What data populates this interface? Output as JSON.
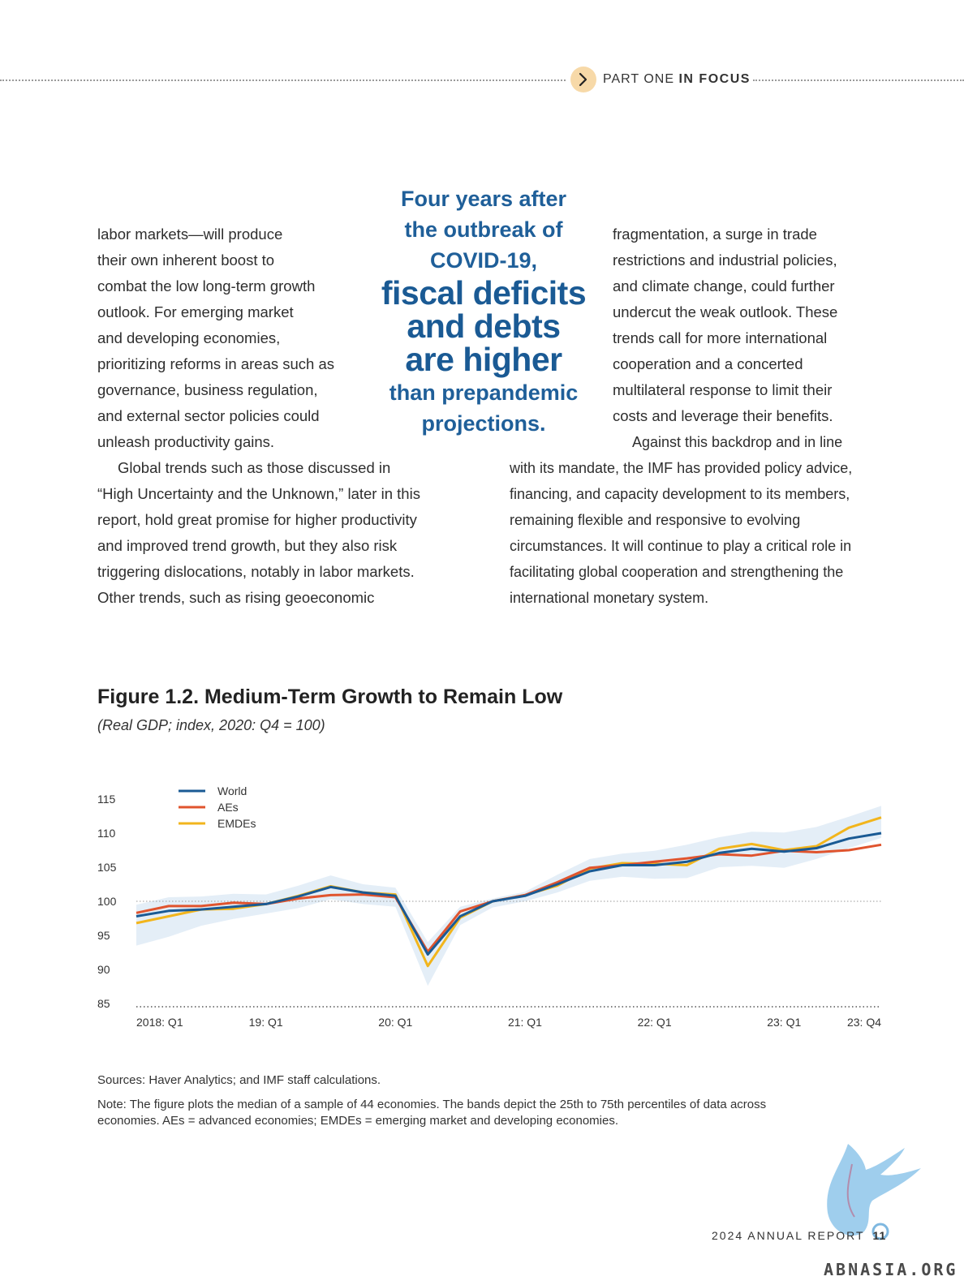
{
  "header": {
    "part": "PART ONE",
    "section": "IN FOCUS"
  },
  "left_column": [
    "labor markets—will produce",
    "their own inherent boost to",
    "combat the low long-term growth",
    "outlook. For emerging market",
    "and developing economies,",
    "prioritizing reforms in areas such as",
    "governance, business regulation,",
    "and external sector policies could",
    "unleash productivity gains."
  ],
  "left_paragraph2": [
    "Global trends such as those discussed in",
    "“High Uncertainty and the Unknown,” later in this",
    "report, hold great promise for higher productivity",
    "and improved trend growth, but they also risk",
    "triggering dislocations, notably in labor markets.",
    "Other trends, such as rising geoeconomic"
  ],
  "right_column": [
    "fragmentation, a surge in trade",
    "restrictions and industrial policies,",
    "and climate change, could further",
    "undercut the weak outlook. These",
    "trends call for more international",
    "cooperation and a concerted",
    "multilateral response to limit their",
    "costs and leverage their benefits."
  ],
  "right_paragraph2": [
    "Against this backdrop and in line",
    "with its mandate, the IMF has provided policy advice,",
    "financing, and capacity development to its members,",
    "remaining flexible and responsive to evolving",
    "circumstances. It will continue to play a critical role in",
    "facilitating global cooperation and strengthening the",
    "international monetary system."
  ],
  "pull_quote": {
    "line1": "Four years after",
    "line2": "the outbreak of",
    "line3": "COVID-19,",
    "line4": "fiscal deficits",
    "line5": "and debts",
    "line6": "are higher",
    "line7": "than prepandemic",
    "line8": "projections."
  },
  "figure": {
    "title": "Figure 1.2. Medium-Term Growth to Remain Low",
    "subtitle": "(Real GDP; index, 2020: Q4 = 100)"
  },
  "chart_data": {
    "type": "line",
    "x": [
      "2018: Q1",
      "2018: Q2",
      "2018: Q3",
      "2018: Q4",
      "2019: Q1",
      "2019: Q2",
      "2019: Q3",
      "2019: Q4",
      "2020: Q1",
      "2020: Q2",
      "2020: Q3",
      "2020: Q4",
      "2021: Q1",
      "2021: Q2",
      "2021: Q3",
      "2021: Q4",
      "2022: Q1",
      "2022: Q2",
      "2022: Q3",
      "2022: Q4",
      "2023: Q1",
      "2023: Q2",
      "2023: Q3",
      "2023: Q4"
    ],
    "tick_labels": [
      "2018: Q1",
      "19: Q1",
      "20: Q1",
      "21: Q1",
      "22: Q1",
      "23: Q1",
      "23: Q4"
    ],
    "tick_positions": [
      "2018: Q1",
      "2019: Q1",
      "2020: Q1",
      "2021: Q1",
      "2022: Q1",
      "2023: Q1",
      "2023: Q4"
    ],
    "ylim": [
      85,
      115
    ],
    "yticks": [
      85,
      90,
      95,
      100,
      105,
      110,
      115
    ],
    "reference_line": 100,
    "legend_position": "top-left",
    "series": [
      {
        "name": "World",
        "color": "#1a5a94",
        "values": [
          97.8,
          98.6,
          98.8,
          99.2,
          99.6,
          100.7,
          102.1,
          101.3,
          100.8,
          92.2,
          97.8,
          100,
          100.8,
          102.5,
          104.4,
          105.3,
          105.3,
          105.8,
          107.1,
          107.7,
          107.3,
          107.8,
          109.2,
          110.0
        ]
      },
      {
        "name": "AEs",
        "color": "#e0542e",
        "values": [
          98.3,
          99.3,
          99.3,
          99.8,
          99.6,
          100.4,
          100.9,
          101.0,
          100.6,
          92.6,
          98.5,
          100,
          100.9,
          102.8,
          104.9,
          105.3,
          105.8,
          106.3,
          106.9,
          106.7,
          107.4,
          107.2,
          107.5,
          108.3
        ]
      },
      {
        "name": "EMDEs",
        "color": "#f2b51c",
        "values": [
          96.8,
          97.8,
          98.8,
          98.9,
          99.6,
          100.8,
          102.2,
          101.3,
          101.0,
          90.5,
          97.6,
          100,
          100.9,
          102.3,
          104.8,
          105.6,
          105.5,
          105.3,
          107.7,
          108.4,
          107.5,
          108.1,
          110.8,
          112.3
        ]
      }
    ],
    "band": {
      "description": "25th to 75th percentiles",
      "color": "#e4eef7",
      "lower": [
        93.5,
        94.8,
        96.4,
        97.4,
        98.2,
        99.0,
        100.3,
        99.6,
        99.2,
        87.6,
        96.5,
        99.1,
        100.0,
        101.3,
        103.0,
        103.6,
        103.3,
        103.4,
        105.0,
        105.2,
        104.9,
        106.2,
        107.8,
        109.3
      ],
      "upper": [
        99.5,
        100.6,
        100.7,
        101.1,
        101.0,
        102.3,
        103.8,
        102.5,
        102.0,
        94.0,
        99.2,
        100.4,
        101.4,
        103.9,
        106.2,
        107.0,
        107.4,
        108.3,
        109.4,
        110.2,
        110.1,
        110.9,
        112.4,
        114.0
      ]
    }
  },
  "sources": "Sources: Haver Analytics; and IMF staff calculations.",
  "note_line1": "Note: The figure plots the median of a sample of 44 economies. The bands depict the 25th to 75th percentiles of data across",
  "note_line2": "economies. AEs = advanced economies; EMDEs = emerging market and developing economies.",
  "footer": {
    "report": "2024 ANNUAL REPORT",
    "page": "11"
  },
  "watermark": "ABNASIA.ORG"
}
